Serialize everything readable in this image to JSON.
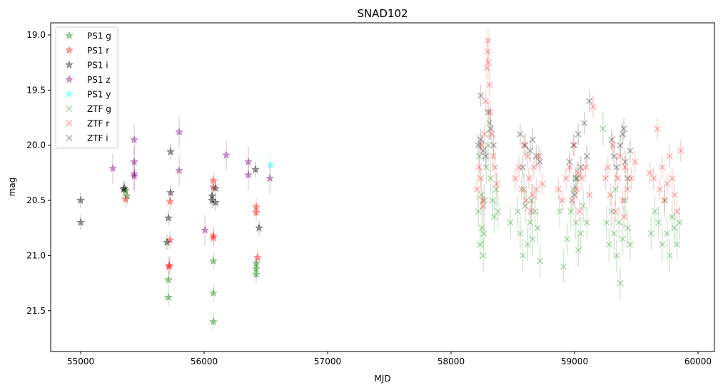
{
  "chart_data": {
    "type": "scatter",
    "title": "SNAD102",
    "xlabel": "MJD",
    "ylabel": "mag",
    "xlim": [
      54757,
      60133
    ],
    "ylim": [
      21.87,
      18.89
    ],
    "y_inverted": true,
    "xticks": [
      55000,
      56000,
      57000,
      58000,
      59000,
      60000
    ],
    "yticks": [
      19.0,
      19.5,
      20.0,
      20.5,
      21.0,
      21.5
    ],
    "ytick_labels": [
      "19.0",
      "19.5",
      "20.0",
      "20.5",
      "21.0",
      "21.5"
    ],
    "legend_position": "top-left",
    "series": [
      {
        "name": "PS1 g",
        "marker": "star",
        "color": "#008000",
        "err": 0.08,
        "points": [
          [
            55364,
            20.41
          ],
          [
            55376,
            20.46
          ],
          [
            55711,
            21.22
          ],
          [
            55711,
            21.38
          ],
          [
            56075,
            21.05
          ],
          [
            56075,
            21.34
          ],
          [
            56075,
            21.6
          ],
          [
            56422,
            21.07
          ],
          [
            56422,
            21.12
          ],
          [
            56422,
            21.17
          ]
        ]
      },
      {
        "name": "PS1 r",
        "marker": "star",
        "color": "#ff0000",
        "err": 0.08,
        "points": [
          [
            55364,
            20.49
          ],
          [
            55717,
            21.09
          ],
          [
            55717,
            21.1
          ],
          [
            55723,
            20.86
          ],
          [
            55723,
            20.51
          ],
          [
            56075,
            20.32
          ],
          [
            56075,
            20.38
          ],
          [
            56075,
            20.82
          ],
          [
            56075,
            20.84
          ],
          [
            56422,
            20.56
          ],
          [
            56422,
            20.61
          ],
          [
            56433,
            21.02
          ]
        ]
      },
      {
        "name": "PS1 i",
        "marker": "star",
        "color": "#000000",
        "err": 0.07,
        "points": [
          [
            55000,
            20.5
          ],
          [
            55000,
            20.7
          ],
          [
            55353,
            20.39
          ],
          [
            55347,
            20.4
          ],
          [
            55711,
            20.66
          ],
          [
            55699,
            20.88
          ],
          [
            55728,
            20.06
          ],
          [
            55728,
            20.43
          ],
          [
            56064,
            20.46
          ],
          [
            56064,
            20.5
          ],
          [
            56092,
            20.39
          ],
          [
            56092,
            20.52
          ],
          [
            56416,
            20.22
          ],
          [
            56445,
            20.75
          ]
        ]
      },
      {
        "name": "PS1 z",
        "marker": "star",
        "color": "#800080",
        "err": 0.14,
        "points": [
          [
            55260,
            20.21
          ],
          [
            55434,
            19.95
          ],
          [
            55434,
            20.15
          ],
          [
            55434,
            20.26
          ],
          [
            55434,
            20.28
          ],
          [
            55798,
            19.88
          ],
          [
            55798,
            20.23
          ],
          [
            56006,
            20.77
          ],
          [
            56179,
            20.09
          ],
          [
            56358,
            20.15
          ],
          [
            56358,
            20.27
          ],
          [
            56532,
            20.3
          ]
        ]
      },
      {
        "name": "PS1 y",
        "marker": "star",
        "color": "#00ffff",
        "err": 0.12,
        "points": [
          [
            56538,
            20.18
          ]
        ]
      },
      {
        "name": "ZTF g",
        "marker": "x",
        "color": "#008000",
        "err": 0.15,
        "points": [
          [
            58220,
            20.6
          ],
          [
            58235,
            20.9
          ],
          [
            58250,
            20.75
          ],
          [
            58260,
            21.0
          ],
          [
            58270,
            20.5
          ],
          [
            58285,
            20.2
          ],
          [
            58300,
            20.0
          ],
          [
            58310,
            19.8
          ],
          [
            58320,
            20.3
          ],
          [
            58335,
            20.5
          ],
          [
            58350,
            20.65
          ],
          [
            58365,
            20.4
          ],
          [
            58380,
            20.6
          ],
          [
            58230,
            20.1
          ],
          [
            58245,
            20.45
          ],
          [
            58265,
            20.8
          ],
          [
            58480,
            20.7
          ],
          [
            58540,
            20.6
          ],
          [
            58560,
            20.8
          ],
          [
            58580,
            21.0
          ],
          [
            58600,
            20.55
          ],
          [
            58620,
            20.9
          ],
          [
            58640,
            20.7
          ],
          [
            58660,
            20.85
          ],
          [
            58680,
            20.6
          ],
          [
            58700,
            20.75
          ],
          [
            58720,
            21.05
          ],
          [
            58590,
            20.4
          ],
          [
            58650,
            20.5
          ],
          [
            58880,
            20.6
          ],
          [
            58910,
            21.1
          ],
          [
            58940,
            20.85
          ],
          [
            58970,
            20.6
          ],
          [
            58990,
            20.4
          ],
          [
            59010,
            20.7
          ],
          [
            59030,
            20.95
          ],
          [
            59050,
            20.8
          ],
          [
            59070,
            20.55
          ],
          [
            59100,
            20.7
          ],
          [
            59020,
            20.3
          ],
          [
            59230,
            19.85
          ],
          [
            59260,
            20.7
          ],
          [
            59280,
            20.9
          ],
          [
            59300,
            20.6
          ],
          [
            59320,
            20.8
          ],
          [
            59340,
            21.0
          ],
          [
            59360,
            20.7
          ],
          [
            59370,
            21.25
          ],
          [
            59390,
            20.85
          ],
          [
            59410,
            20.5
          ],
          [
            59430,
            20.75
          ],
          [
            59450,
            20.9
          ],
          [
            59330,
            20.4
          ],
          [
            59620,
            20.8
          ],
          [
            59650,
            20.6
          ],
          [
            59680,
            20.7
          ],
          [
            59710,
            20.9
          ],
          [
            59730,
            20.5
          ],
          [
            59750,
            20.8
          ],
          [
            59770,
            21.0
          ],
          [
            59790,
            20.65
          ],
          [
            59810,
            20.75
          ],
          [
            59830,
            20.9
          ],
          [
            59850,
            20.7
          ]
        ]
      },
      {
        "name": "ZTF r",
        "marker": "x",
        "color": "#ff0000",
        "err": 0.1,
        "points": [
          [
            58210,
            20.4
          ],
          [
            58225,
            20.2
          ],
          [
            58240,
            20.3
          ],
          [
            58255,
            20.5
          ],
          [
            58270,
            19.9
          ],
          [
            58280,
            19.6
          ],
          [
            58290,
            19.3
          ],
          [
            58295,
            19.15
          ],
          [
            58300,
            19.05
          ],
          [
            58305,
            19.25
          ],
          [
            58310,
            19.45
          ],
          [
            58320,
            19.7
          ],
          [
            58330,
            19.9
          ],
          [
            58340,
            20.1
          ],
          [
            58355,
            20.2
          ],
          [
            58370,
            20.35
          ],
          [
            58245,
            20.0
          ],
          [
            58260,
            20.55
          ],
          [
            58520,
            20.3
          ],
          [
            58550,
            20.2
          ],
          [
            58570,
            20.4
          ],
          [
            58590,
            20.0
          ],
          [
            58610,
            20.5
          ],
          [
            58630,
            20.3
          ],
          [
            58650,
            20.6
          ],
          [
            58670,
            20.2
          ],
          [
            58690,
            20.4
          ],
          [
            58710,
            20.1
          ],
          [
            58740,
            20.35
          ],
          [
            58620,
            20.1
          ],
          [
            58660,
            20.45
          ],
          [
            58870,
            20.4
          ],
          [
            58900,
            20.5
          ],
          [
            58930,
            20.3
          ],
          [
            58960,
            20.2
          ],
          [
            58980,
            20.5
          ],
          [
            59000,
            20.0
          ],
          [
            59020,
            20.4
          ],
          [
            59040,
            20.6
          ],
          [
            59060,
            20.3
          ],
          [
            59090,
            20.2
          ],
          [
            59120,
            20.45
          ],
          [
            59150,
            19.65
          ],
          [
            59030,
            20.25
          ],
          [
            59250,
            20.3
          ],
          [
            59270,
            20.2
          ],
          [
            59290,
            20.45
          ],
          [
            59310,
            20.0
          ],
          [
            59330,
            20.6
          ],
          [
            59350,
            20.3
          ],
          [
            59370,
            20.1
          ],
          [
            59390,
            20.5
          ],
          [
            59410,
            20.2
          ],
          [
            59430,
            20.4
          ],
          [
            59460,
            20.3
          ],
          [
            59490,
            20.15
          ],
          [
            59400,
            20.65
          ],
          [
            59610,
            20.25
          ],
          [
            59640,
            20.3
          ],
          [
            59670,
            19.85
          ],
          [
            59690,
            20.4
          ],
          [
            59710,
            20.2
          ],
          [
            59730,
            20.5
          ],
          [
            59750,
            20.35
          ],
          [
            59770,
            20.1
          ],
          [
            59790,
            20.3
          ],
          [
            59810,
            20.45
          ],
          [
            59830,
            20.6
          ],
          [
            59860,
            20.05
          ]
        ]
      },
      {
        "name": "ZTF i",
        "marker": "x",
        "color": "#000000",
        "err": 0.1,
        "points": [
          [
            58220,
            20.0
          ],
          [
            58240,
            19.95
          ],
          [
            58260,
            20.05
          ],
          [
            58280,
            20.1
          ],
          [
            58300,
            19.7
          ],
          [
            58320,
            19.85
          ],
          [
            58240,
            19.55
          ],
          [
            58345,
            20.0
          ],
          [
            58560,
            19.9
          ],
          [
            58600,
            20.0
          ],
          [
            58640,
            20.05
          ],
          [
            58660,
            19.95
          ],
          [
            58690,
            20.1
          ],
          [
            58720,
            20.15
          ],
          [
            58580,
            20.2
          ],
          [
            58960,
            20.15
          ],
          [
            58990,
            20.0
          ],
          [
            59010,
            20.3
          ],
          [
            59030,
            19.9
          ],
          [
            59050,
            20.2
          ],
          [
            59080,
            19.8
          ],
          [
            59100,
            20.1
          ],
          [
            59120,
            19.6
          ],
          [
            59000,
            20.45
          ],
          [
            59300,
            19.95
          ],
          [
            59320,
            20.1
          ],
          [
            59340,
            20.2
          ],
          [
            59370,
            20.0
          ],
          [
            59390,
            19.9
          ],
          [
            59410,
            20.15
          ],
          [
            59430,
            20.3
          ],
          [
            59450,
            20.05
          ],
          [
            59400,
            19.85
          ]
        ]
      }
    ]
  }
}
